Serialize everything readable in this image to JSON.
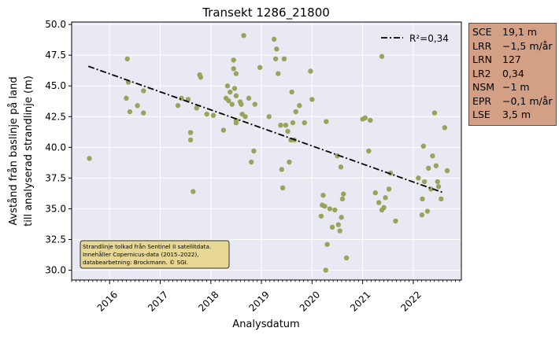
{
  "chart_data": {
    "type": "scatter",
    "title": "Transekt 1286_21800",
    "xlabel": "Analysdatum",
    "ylabel_lines": [
      "Avstånd från baslinje på land",
      "till analyserad strandlinje (m)"
    ],
    "xlim": [
      2015.25,
      2022.95
    ],
    "ylim": [
      29.2,
      50.2
    ],
    "x_ticks": [
      2016,
      2017,
      2018,
      2019,
      2020,
      2021,
      2022
    ],
    "x_tick_labels": [
      "2016",
      "2017",
      "2018",
      "2019",
      "2020",
      "2021",
      "2022"
    ],
    "y_ticks": [
      30.0,
      32.5,
      35.0,
      37.5,
      40.0,
      42.5,
      45.0,
      47.5,
      50.0
    ],
    "y_tick_labels": [
      "30.0",
      "32.5",
      "35.0",
      "37.5",
      "40.0",
      "42.5",
      "45.0",
      "47.5",
      "50.0"
    ],
    "grid": true,
    "point_color": "#9aa35c",
    "line_color": "#000000",
    "plot_background": "#e9e9f3",
    "trendline": {
      "label": "R²=0,34",
      "x": [
        2015.58,
        2022.6
      ],
      "y": [
        46.6,
        36.3
      ]
    },
    "legend_position": "top-right",
    "points": [
      [
        2015.6,
        39.1
      ],
      [
        2016.35,
        47.2
      ],
      [
        2016.33,
        44.0
      ],
      [
        2016.37,
        45.3
      ],
      [
        2016.4,
        42.9
      ],
      [
        2016.55,
        43.4
      ],
      [
        2016.67,
        44.6
      ],
      [
        2016.67,
        42.8
      ],
      [
        2017.35,
        43.4
      ],
      [
        2017.42,
        44.0
      ],
      [
        2017.55,
        43.9
      ],
      [
        2017.6,
        41.2
      ],
      [
        2017.6,
        40.6
      ],
      [
        2017.65,
        36.4
      ],
      [
        2017.72,
        43.2
      ],
      [
        2017.78,
        45.9
      ],
      [
        2017.8,
        45.7
      ],
      [
        2017.92,
        42.7
      ],
      [
        2018.05,
        42.6
      ],
      [
        2018.25,
        41.4
      ],
      [
        2018.3,
        44.0
      ],
      [
        2018.33,
        45.0
      ],
      [
        2018.35,
        43.8
      ],
      [
        2018.38,
        44.5
      ],
      [
        2018.42,
        43.5
      ],
      [
        2018.45,
        47.1
      ],
      [
        2018.45,
        46.4
      ],
      [
        2018.47,
        44.8
      ],
      [
        2018.5,
        44.2
      ],
      [
        2018.5,
        42.2
      ],
      [
        2018.5,
        42.0
      ],
      [
        2018.5,
        46.0
      ],
      [
        2018.58,
        43.7
      ],
      [
        2018.6,
        43.5
      ],
      [
        2018.62,
        42.7
      ],
      [
        2018.65,
        49.1
      ],
      [
        2018.68,
        42.5
      ],
      [
        2018.75,
        44.0
      ],
      [
        2018.8,
        38.8
      ],
      [
        2018.85,
        39.7
      ],
      [
        2018.87,
        43.5
      ],
      [
        2018.97,
        46.5
      ],
      [
        2019.15,
        42.5
      ],
      [
        2019.25,
        48.8
      ],
      [
        2019.28,
        47.2
      ],
      [
        2019.3,
        48.0
      ],
      [
        2019.33,
        46.0
      ],
      [
        2019.38,
        41.8
      ],
      [
        2019.4,
        38.2
      ],
      [
        2019.42,
        36.7
      ],
      [
        2019.45,
        47.2
      ],
      [
        2019.48,
        41.8
      ],
      [
        2019.52,
        41.3
      ],
      [
        2019.55,
        38.8
      ],
      [
        2019.58,
        40.6
      ],
      [
        2019.6,
        44.5
      ],
      [
        2019.62,
        42.0
      ],
      [
        2019.65,
        40.6
      ],
      [
        2019.68,
        42.9
      ],
      [
        2019.75,
        43.4
      ],
      [
        2019.85,
        42.0
      ],
      [
        2019.97,
        46.2
      ],
      [
        2020.0,
        43.9
      ],
      [
        2020.18,
        34.4
      ],
      [
        2020.2,
        35.3
      ],
      [
        2020.22,
        36.1
      ],
      [
        2020.25,
        35.2
      ],
      [
        2020.27,
        30.0
      ],
      [
        2020.28,
        42.1
      ],
      [
        2020.3,
        32.1
      ],
      [
        2020.35,
        35.0
      ],
      [
        2020.4,
        33.5
      ],
      [
        2020.45,
        34.9
      ],
      [
        2020.5,
        39.3
      ],
      [
        2020.52,
        33.7
      ],
      [
        2020.55,
        33.2
      ],
      [
        2020.57,
        38.4
      ],
      [
        2020.58,
        34.3
      ],
      [
        2020.6,
        35.8
      ],
      [
        2020.62,
        36.2
      ],
      [
        2020.68,
        31.0
      ],
      [
        2021.0,
        42.3
      ],
      [
        2021.05,
        42.4
      ],
      [
        2021.12,
        39.7
      ],
      [
        2021.15,
        42.2
      ],
      [
        2021.25,
        36.3
      ],
      [
        2021.32,
        35.5
      ],
      [
        2021.38,
        47.4
      ],
      [
        2021.38,
        34.9
      ],
      [
        2021.42,
        35.1
      ],
      [
        2021.45,
        35.9
      ],
      [
        2021.52,
        36.6
      ],
      [
        2021.55,
        37.9
      ],
      [
        2021.65,
        34.0
      ],
      [
        2022.1,
        37.5
      ],
      [
        2022.17,
        34.5
      ],
      [
        2022.18,
        35.8
      ],
      [
        2022.2,
        40.1
      ],
      [
        2022.22,
        37.2
      ],
      [
        2022.28,
        34.8
      ],
      [
        2022.3,
        38.3
      ],
      [
        2022.35,
        36.6
      ],
      [
        2022.38,
        39.3
      ],
      [
        2022.42,
        42.8
      ],
      [
        2022.45,
        38.5
      ],
      [
        2022.48,
        37.2
      ],
      [
        2022.5,
        36.8
      ],
      [
        2022.55,
        35.8
      ],
      [
        2022.62,
        41.6
      ],
      [
        2022.67,
        38.1
      ]
    ],
    "annotation_lines": [
      "Strandlinje tolkad från Sentinel II satellitdata.",
      "Innehåller Copernicus-data (2015–2022),",
      "databearbetning: Brockmann. © SGI."
    ],
    "annotation_color": "#e6d894"
  },
  "stats": [
    {
      "label": "SCE",
      "value": "19,1 m"
    },
    {
      "label": "LRR",
      "value": "−1,5 m/år"
    },
    {
      "label": "LRN",
      "value": "127"
    },
    {
      "label": "LR2",
      "value": "0,34"
    },
    {
      "label": "NSM",
      "value": "−1 m"
    },
    {
      "label": "EPR",
      "value": "−0,1 m/år"
    },
    {
      "label": "LSE",
      "value": "3,5 m"
    }
  ],
  "stats_color": "#d4a085"
}
